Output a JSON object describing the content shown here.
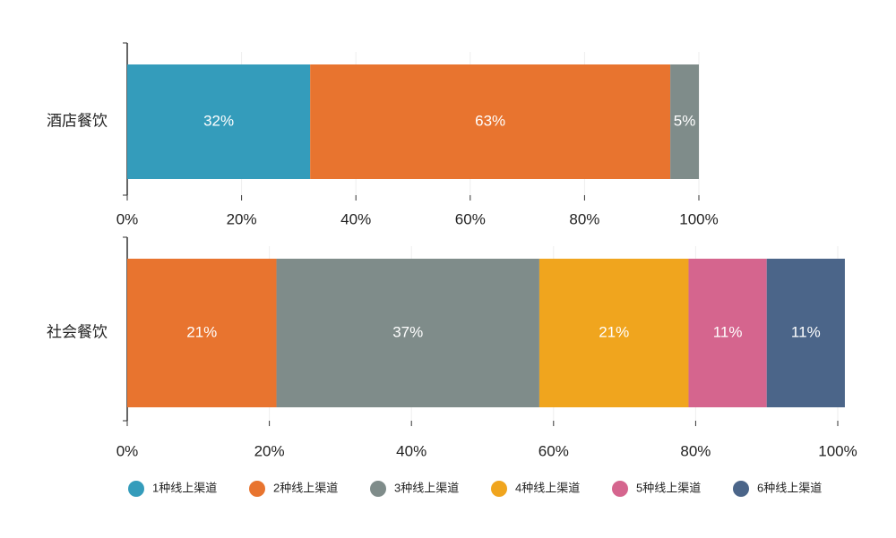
{
  "chart_data": [
    {
      "type": "stacked-bar-horizontal",
      "categories": [
        "酒店餐饮"
      ],
      "series": [
        {
          "name": "1种线上渠道",
          "color": "#349cbb",
          "values": [
            32
          ],
          "value_labels": [
            "32%"
          ]
        },
        {
          "name": "2种线上渠道",
          "color": "#e8742f",
          "values": [
            63
          ],
          "value_labels": [
            "63%"
          ]
        },
        {
          "name": "3种线上渠道",
          "color": "#7f8c8a",
          "values": [
            5
          ],
          "value_labels": [
            "5%"
          ]
        }
      ],
      "xlim": [
        0,
        100
      ],
      "xticks": [
        {
          "value": 0,
          "label": "0%"
        },
        {
          "value": 20,
          "label": "20%"
        },
        {
          "value": 40,
          "label": "40%"
        },
        {
          "value": 60,
          "label": "60%"
        },
        {
          "value": 80,
          "label": "80%"
        },
        {
          "value": 100,
          "label": "100%"
        }
      ],
      "grid": true
    },
    {
      "type": "stacked-bar-horizontal",
      "categories": [
        "社会餐饮"
      ],
      "series": [
        {
          "name": "2种线上渠道",
          "color": "#e8742f",
          "values": [
            21
          ],
          "value_labels": [
            "21%"
          ]
        },
        {
          "name": "3种线上渠道",
          "color": "#7f8c8a",
          "values": [
            37
          ],
          "value_labels": [
            "37%"
          ]
        },
        {
          "name": "4种线上渠道",
          "color": "#f0a51e",
          "values": [
            21
          ],
          "value_labels": [
            "21%"
          ]
        },
        {
          "name": "5种线上渠道",
          "color": "#d5658e",
          "values": [
            11
          ],
          "value_labels": [
            "11%"
          ]
        },
        {
          "name": "6种线上渠道",
          "color": "#4b6589",
          "values": [
            11
          ],
          "value_labels": [
            "11%"
          ]
        }
      ],
      "xlim": [
        0,
        100
      ],
      "xticks": [
        {
          "value": 0,
          "label": "0%"
        },
        {
          "value": 20,
          "label": "20%"
        },
        {
          "value": 40,
          "label": "40%"
        },
        {
          "value": 60,
          "label": "60%"
        },
        {
          "value": 80,
          "label": "80%"
        },
        {
          "value": 100,
          "label": "100%"
        }
      ],
      "grid": true
    }
  ]
}
